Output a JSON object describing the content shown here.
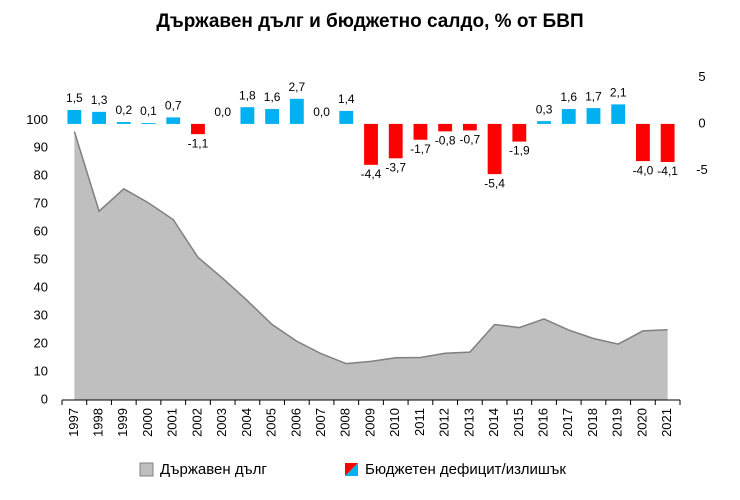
{
  "chart_data": {
    "type": "combo",
    "title": "Държавен дълг и бюджетно салдо, % от БВП",
    "categories": [
      "1997",
      "1998",
      "1999",
      "2000",
      "2001",
      "2002",
      "2003",
      "2004",
      "2005",
      "2006",
      "2007",
      "2008",
      "2009",
      "2010",
      "2011",
      "2012",
      "2013",
      "2014",
      "2015",
      "2016",
      "2017",
      "2018",
      "2019",
      "2020",
      "2021"
    ],
    "series": [
      {
        "name": "Държавен дълг",
        "type": "area",
        "color": "#bfbfbf",
        "line_color": "#808080",
        "values": [
          96,
          67.5,
          75.5,
          70.5,
          64.5,
          51,
          43.5,
          35.5,
          27,
          21,
          16.5,
          13,
          13.8,
          15.1,
          15.2,
          16.7,
          17.1,
          27,
          25.9,
          29,
          25,
          22,
          20,
          24.7,
          25.1
        ]
      },
      {
        "name": "Бюджетен дефицит/излишък",
        "type": "bar",
        "axis": "y2",
        "color": "#00b0f0",
        "negative_color": "#ff0000",
        "values": [
          1.5,
          1.3,
          0.2,
          0.1,
          0.7,
          -1.1,
          0.0,
          1.8,
          1.6,
          2.7,
          0.0,
          1.4,
          -4.4,
          -3.7,
          -1.7,
          -0.8,
          -0.7,
          -5.4,
          -1.9,
          0.3,
          1.6,
          1.7,
          2.1,
          -4.0,
          -4.1
        ],
        "value_labels": [
          "1,5",
          "1,3",
          "0,2",
          "0,1",
          "0,7",
          "-1,1",
          "0,0",
          "1,8",
          "1,6",
          "2,7",
          "0,0",
          "1,4",
          "-4,4",
          "-3,7",
          "-1,7",
          "-0,8",
          "-0,7",
          "-5,4",
          "-1,9",
          "0,3",
          "1,6",
          "1,7",
          "2,1",
          "-4,0",
          "-4,1"
        ]
      }
    ],
    "ylim": [
      0,
      118
    ],
    "yticks": [
      0,
      10,
      20,
      30,
      40,
      50,
      60,
      70,
      80,
      90,
      100
    ],
    "y2lim": [
      -29.7,
      5.8
    ],
    "y2ticks": [
      -5,
      0,
      5
    ]
  }
}
